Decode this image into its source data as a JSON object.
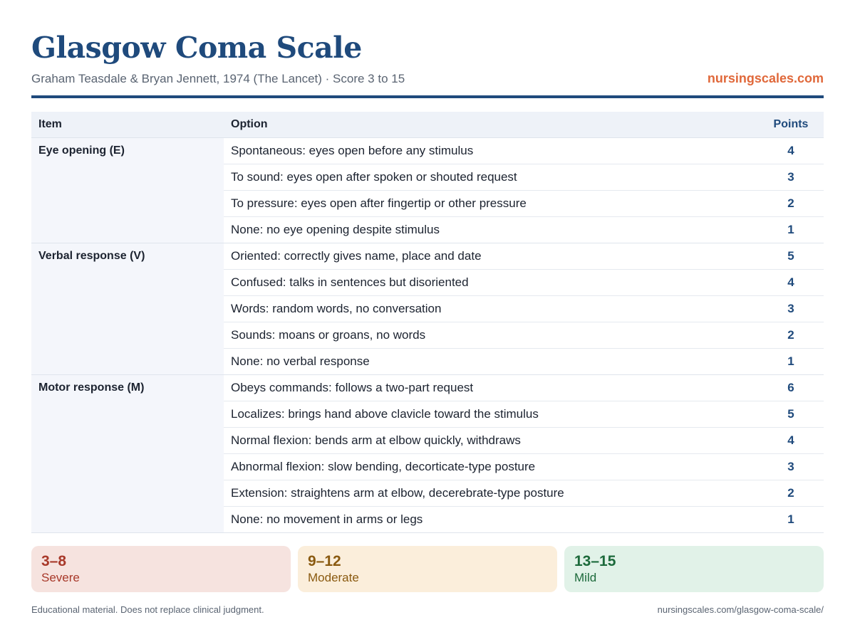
{
  "header": {
    "title": "Glasgow Coma Scale",
    "subtitle": "Graham Teasdale & Bryan Jennett, 1974 (The Lancet) · Score 3 to 15",
    "brand": "nursingscales.com"
  },
  "colors": {
    "accent": "#1f4a7c",
    "brand": "#e0683a",
    "severe": "#a8392a",
    "moderate": "#8a5a10",
    "mild": "#1c6a3b"
  },
  "table": {
    "headers": {
      "item": "Item",
      "option": "Option",
      "points": "Points"
    },
    "groups": [
      {
        "label": "Eye opening (E)",
        "rows": [
          {
            "option": "Spontaneous: eyes open before any stimulus",
            "points": "4"
          },
          {
            "option": "To sound: eyes open after spoken or shouted request",
            "points": "3"
          },
          {
            "option": "To pressure: eyes open after fingertip or other pressure",
            "points": "2"
          },
          {
            "option": "None: no eye opening despite stimulus",
            "points": "1"
          }
        ]
      },
      {
        "label": "Verbal response (V)",
        "rows": [
          {
            "option": "Oriented: correctly gives name, place and date",
            "points": "5"
          },
          {
            "option": "Confused: talks in sentences but disoriented",
            "points": "4"
          },
          {
            "option": "Words: random words, no conversation",
            "points": "3"
          },
          {
            "option": "Sounds: moans or groans, no words",
            "points": "2"
          },
          {
            "option": "None: no verbal response",
            "points": "1"
          }
        ]
      },
      {
        "label": "Motor response (M)",
        "rows": [
          {
            "option": "Obeys commands: follows a two-part request",
            "points": "6"
          },
          {
            "option": "Localizes: brings hand above clavicle toward the stimulus",
            "points": "5"
          },
          {
            "option": "Normal flexion: bends arm at elbow quickly, withdraws",
            "points": "4"
          },
          {
            "option": "Abnormal flexion: slow bending, decorticate-type posture",
            "points": "3"
          },
          {
            "option": "Extension: straightens arm at elbow, decerebrate-type posture",
            "points": "2"
          },
          {
            "option": "None: no movement in arms or legs",
            "points": "1"
          }
        ]
      }
    ]
  },
  "bands": [
    {
      "range": "3–8",
      "label": "Severe"
    },
    {
      "range": "9–12",
      "label": "Moderate"
    },
    {
      "range": "13–15",
      "label": "Mild"
    }
  ],
  "footer": {
    "note": "Educational material. Does not replace clinical judgment.",
    "url": "nursingscales.com/glasgow-coma-scale/"
  }
}
